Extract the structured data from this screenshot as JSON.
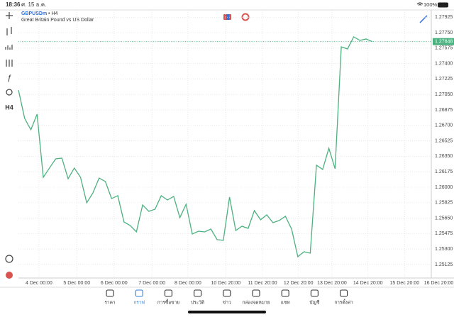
{
  "status_bar": {
    "time": "18:36",
    "date": "ศ. 15 ธ.ค.",
    "battery": "100%"
  },
  "chart_data": {
    "type": "line",
    "title": "GBPUSDm",
    "timeframe": "• H4",
    "subtitle": "Great Britain Pound vs US Dollar",
    "x": [
      0,
      1,
      2,
      3,
      4,
      5,
      6,
      7,
      8,
      9,
      10,
      11,
      12,
      13,
      14,
      15,
      16,
      17,
      18,
      19,
      20,
      21,
      22,
      23,
      24,
      25,
      26,
      27,
      28,
      29,
      30,
      31,
      32,
      33,
      34,
      35,
      36,
      37,
      38,
      39,
      40,
      41,
      42,
      43,
      44,
      45,
      46,
      47,
      48,
      49,
      50,
      51,
      52,
      53,
      54,
      55,
      56,
      57
    ],
    "series": [
      {
        "name": "GBPUSDm",
        "color": "#4cb07f",
        "values": [
          1.271,
          1.26779,
          1.2665,
          1.26827,
          1.26112,
          1.26217,
          1.26321,
          1.26329,
          1.26096,
          1.26217,
          1.26112,
          1.25823,
          1.25936,
          1.26104,
          1.26064,
          1.25871,
          1.25904,
          1.25607,
          1.25566,
          1.25494,
          1.25799,
          1.25727,
          1.25751,
          1.25904,
          1.25855,
          1.25896,
          1.25655,
          1.25807,
          1.2547,
          1.25502,
          1.25494,
          1.25526,
          1.25406,
          1.25398,
          1.25888,
          1.2551,
          1.25558,
          1.25534,
          1.25735,
          1.25631,
          1.25687,
          1.25598,
          1.25623,
          1.25671,
          1.25526,
          1.25213,
          1.25269,
          1.25253,
          1.26249,
          1.26201,
          1.26441,
          1.26209,
          1.27589,
          1.27565,
          1.27702,
          1.27662,
          1.27678,
          1.27648
        ]
      }
    ],
    "current_price": 1.27648,
    "xlim": [
      0,
      66.5
    ],
    "xticks": [
      {
        "value": 3.3,
        "label": "4 Dec 00:00"
      },
      {
        "value": 9.4,
        "label": "5 Dec 00:00"
      },
      {
        "value": 15.4,
        "label": "6 Dec 00:00"
      },
      {
        "value": 21.5,
        "label": "7 Dec 00:00"
      },
      {
        "value": 27.3,
        "label": "8 Dec 00:00"
      },
      {
        "value": 33.4,
        "label": "10 Dec 20:00"
      },
      {
        "value": 39.3,
        "label": "11 Dec 20:00"
      },
      {
        "value": 45.1,
        "label": "12 Dec 20:00"
      },
      {
        "value": 50.5,
        "label": "13 Dec 20:00"
      },
      {
        "value": 56.3,
        "label": "14 Dec 20:00"
      },
      {
        "value": 62.2,
        "label": "15 Dec 20:00"
      },
      {
        "value": 67.7,
        "label": "16 Dec 20:00"
      }
    ],
    "ylim": [
      1.24972,
      1.28007
    ],
    "yticks": [
      1.27925,
      {
        "value": 1.2775,
        "label": "1.27750"
      },
      1.27575,
      {
        "value": 1.274,
        "label": "1.27400"
      },
      1.27225,
      {
        "value": 1.2705,
        "label": "1.27050"
      },
      1.26875,
      {
        "value": 1.267,
        "label": "1.26700"
      },
      1.26525,
      {
        "value": 1.2635,
        "label": "1.26350"
      },
      1.26175,
      {
        "value": 1.26,
        "label": "1.26000"
      },
      1.25825,
      {
        "value": 1.2565,
        "label": "1.25650"
      },
      1.25475,
      {
        "value": 1.253,
        "label": "1.25300"
      },
      1.25125
    ],
    "grid": true
  },
  "side_toolbar": {
    "timeframe": "H4"
  },
  "tab_bar": {
    "tabs": [
      "ราคา",
      "กราฟ",
      "การซื้อขาย",
      "ประวัติ",
      "ข่าว",
      "กล่องจดหมาย",
      "แชท",
      "บัญชี",
      "การตั้งค่า"
    ],
    "active": 1
  }
}
